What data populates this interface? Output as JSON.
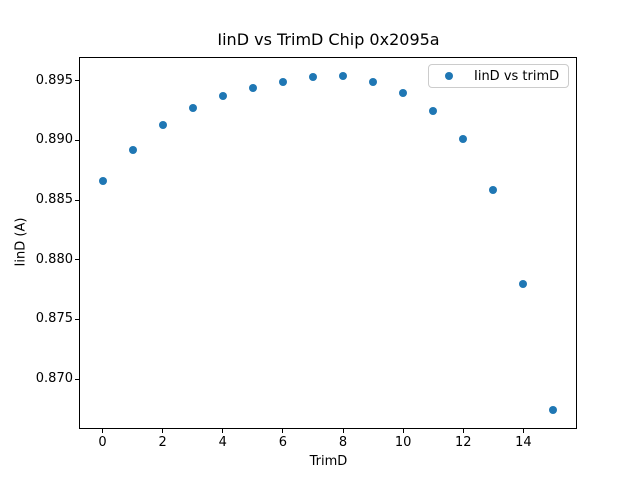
{
  "chart_data": {
    "type": "scatter",
    "title": "IinD vs TrimD Chip 0x2095a",
    "xlabel": "TrimD",
    "ylabel": "IinD (A)",
    "legend": {
      "label": "IinD vs trimD",
      "position": "upper right"
    },
    "x": [
      0,
      1,
      2,
      3,
      4,
      5,
      6,
      7,
      8,
      9,
      10,
      11,
      12,
      13,
      14,
      15
    ],
    "y": [
      0.8866,
      0.8892,
      0.8913,
      0.8927,
      0.8937,
      0.8944,
      0.8949,
      0.8953,
      0.8954,
      0.8949,
      0.894,
      0.8925,
      0.8901,
      0.8858,
      0.878,
      0.8674
    ],
    "xlim": [
      -0.75,
      15.75
    ],
    "ylim": [
      0.8659,
      0.8969
    ],
    "xticks": [
      0,
      2,
      4,
      6,
      8,
      10,
      12,
      14
    ],
    "xtick_labels": [
      "0",
      "2",
      "4",
      "6",
      "8",
      "10",
      "12",
      "14"
    ],
    "yticks": [
      0.87,
      0.875,
      0.88,
      0.885,
      0.89,
      0.895
    ],
    "ytick_labels": [
      "0.870",
      "0.875",
      "0.880",
      "0.885",
      "0.890",
      "0.895"
    ],
    "marker_color": "#1f77b4",
    "grid": false
  }
}
